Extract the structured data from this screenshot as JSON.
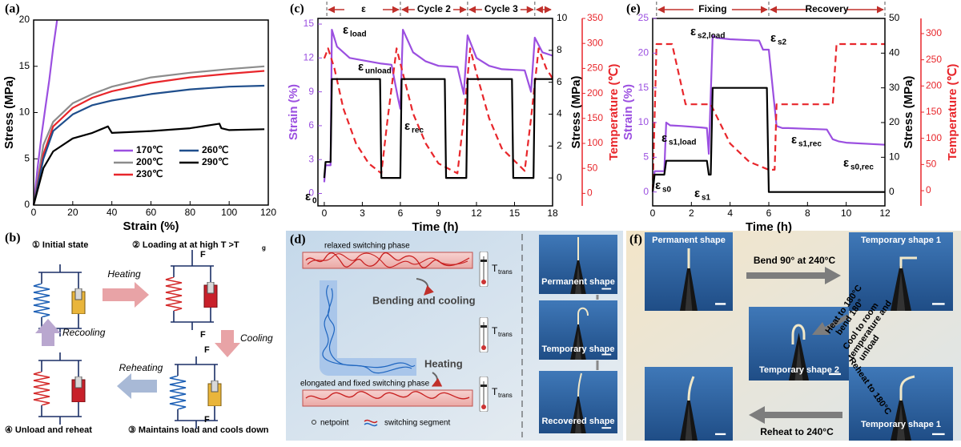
{
  "chart_data": [
    {
      "type": "line",
      "panel_label": "(a)",
      "xlabel": "Strain (%)",
      "ylabel": "Stress (MPa)",
      "xlim": [
        0,
        120
      ],
      "xticks": [
        0,
        20,
        40,
        60,
        80,
        100,
        120
      ],
      "ylim": [
        0,
        20
      ],
      "yticks": [
        0,
        5,
        10,
        15,
        20
      ],
      "legend": "lower center",
      "series": [
        {
          "name": "170℃",
          "color": "#9b4fe0",
          "x": [
            0,
            2,
            4,
            6,
            8,
            10,
            12
          ],
          "values": [
            0,
            4,
            7.5,
            10.5,
            13.5,
            17,
            20
          ]
        },
        {
          "name": "200℃",
          "color": "#8c8c8c",
          "x": [
            0,
            5,
            10,
            20,
            30,
            40,
            60,
            80,
            100,
            118
          ],
          "values": [
            0,
            6.5,
            9,
            11,
            12,
            12.8,
            13.8,
            14.3,
            14.7,
            15
          ]
        },
        {
          "name": "230℃",
          "color": "#e8262b",
          "x": [
            0,
            5,
            10,
            20,
            30,
            40,
            60,
            80,
            100,
            118
          ],
          "values": [
            0,
            5.5,
            8.5,
            10.5,
            11.6,
            12.3,
            13.2,
            13.8,
            14.2,
            14.5
          ]
        },
        {
          "name": "260℃",
          "color": "#1f4e8c",
          "x": [
            0,
            5,
            10,
            20,
            30,
            40,
            60,
            80,
            100,
            118
          ],
          "values": [
            0,
            5,
            8,
            9.8,
            10.8,
            11.3,
            12,
            12.5,
            12.8,
            12.9
          ]
        },
        {
          "name": "290℃",
          "color": "#000000",
          "x": [
            0,
            5,
            10,
            20,
            30,
            38,
            40,
            60,
            80,
            95,
            96,
            100,
            118
          ],
          "values": [
            0,
            4,
            5.8,
            7.2,
            7.8,
            8.5,
            7.8,
            8,
            8.3,
            8.8,
            8.3,
            8.1,
            8.2
          ]
        }
      ]
    },
    {
      "type": "line",
      "panel_label": "(c)",
      "xlabel": "Time (h)",
      "ylabel": "Strain (%)",
      "y2label": "Stress (MPa)",
      "y3label": "Temperature (℃)",
      "ycolor": "#9b4fe0",
      "y2color": "#000000",
      "y3color": "#e8262b",
      "xlim": [
        -0.5,
        18
      ],
      "xticks": [
        0,
        3,
        6,
        9,
        12,
        15,
        18
      ],
      "ylim": [
        -1.1,
        15.5
      ],
      "yticks": [
        0,
        3,
        6,
        9,
        12,
        15
      ],
      "y2lim": [
        -1.75,
        10
      ],
      "y2ticks": [
        0,
        2,
        4,
        6,
        8,
        10
      ],
      "y3lim": [
        -25,
        350
      ],
      "y3ticks": [
        0,
        50,
        100,
        150,
        200,
        250,
        300,
        350
      ],
      "header": [
        "ε",
        "Cycle 2",
        "Cycle 3"
      ],
      "annotations": [
        {
          "text": "ε",
          "sub": "load"
        },
        {
          "text": "ε",
          "sub": "unload"
        },
        {
          "text": "ε",
          "sub": "rec"
        },
        {
          "text": "ε",
          "sub": "0"
        }
      ],
      "series": [
        {
          "axis": "y",
          "color": "#9b4fe0",
          "x": [
            0,
            0.1,
            0.5,
            0.6,
            1,
            2,
            3,
            4.5,
            5.3,
            5.8,
            6.0,
            6.2,
            7,
            8,
            9,
            10.5,
            11,
            11.3,
            12,
            13,
            14,
            15.8,
            16.3,
            16.6,
            17.2,
            18
          ],
          "values": [
            1,
            2.5,
            2.5,
            14.5,
            13,
            12,
            11.8,
            11.5,
            11.4,
            8.5,
            7.5,
            14.5,
            12.5,
            11.7,
            11.3,
            11.2,
            8.8,
            14,
            12,
            11.3,
            11,
            10.9,
            9,
            13.8,
            12.5,
            12.2
          ]
        },
        {
          "axis": "y3",
          "color": "#e8262b",
          "dashed": true,
          "x": [
            0,
            0.3,
            0.8,
            1.5,
            2.5,
            3.5,
            4.5,
            5.0,
            5.7,
            6.3,
            7,
            8,
            9,
            10.5,
            11.0,
            11.5,
            12,
            13,
            14,
            15.8,
            16.3,
            16.9,
            17.5,
            18
          ],
          "values": [
            270,
            290,
            250,
            170,
            100,
            60,
            40,
            150,
            290,
            230,
            160,
            100,
            60,
            40,
            150,
            290,
            240,
            150,
            90,
            45,
            150,
            290,
            250,
            230
          ]
        },
        {
          "axis": "y2",
          "color": "#000000",
          "x": [
            0,
            0.1,
            0.5,
            0.6,
            4.4,
            4.5,
            6.0,
            6.1,
            9.5,
            9.6,
            11.2,
            11.3,
            14.8,
            14.9,
            16.5,
            16.6,
            18
          ],
          "values": [
            0,
            1,
            1,
            6.2,
            6.2,
            0,
            0,
            6.2,
            6.2,
            0,
            0,
            6.2,
            6.2,
            0,
            0,
            6.2,
            6.2
          ]
        }
      ]
    },
    {
      "type": "line",
      "panel_label": "(e)",
      "xlabel": "Time (h)",
      "ylabel": "Strain (%)",
      "y2label": "Stress (MPa)",
      "y3label": "Temperature (℃)",
      "ycolor": "#9b4fe0",
      "y2color": "#000000",
      "y3color": "#e8262b",
      "xlim": [
        0,
        12
      ],
      "xticks": [
        0,
        2,
        4,
        6,
        8,
        10,
        12
      ],
      "ylim": [
        -2,
        25
      ],
      "yticks": [
        0,
        5,
        10,
        15,
        20,
        25
      ],
      "y2lim": [
        -4,
        50
      ],
      "y2ticks": [
        0,
        10,
        20,
        30,
        40,
        50
      ],
      "y3lim": [
        -29,
        329
      ],
      "y3ticks": [
        0,
        50,
        100,
        150,
        200,
        250,
        300
      ],
      "header": [
        "Fixing",
        "Recovery"
      ],
      "annotations": [
        {
          "text": "ε",
          "sub": "s2,load"
        },
        {
          "text": "ε",
          "sub": "s2"
        },
        {
          "text": "ε",
          "sub": "s1,load"
        },
        {
          "text": "ε",
          "sub": "s1"
        },
        {
          "text": "ε",
          "sub": "s0"
        },
        {
          "text": "ε",
          "sub": "s1,rec"
        },
        {
          "text": "ε",
          "sub": "s0,rec"
        }
      ],
      "series": [
        {
          "axis": "y",
          "color": "#9b4fe0",
          "x": [
            0,
            0.1,
            0.6,
            0.7,
            0.9,
            1.5,
            2.5,
            2.8,
            2.9,
            3.1,
            3.3,
            4,
            5.5,
            5.7,
            6.0,
            6.4,
            6.7,
            7,
            8,
            9,
            9.3,
            9.6,
            10,
            12
          ],
          "values": [
            0,
            3,
            3,
            10,
            9.6,
            9.5,
            9.3,
            9.2,
            5.5,
            22.5,
            22.2,
            22,
            21.8,
            20.5,
            20.5,
            9.5,
            9.2,
            9.2,
            9.1,
            9,
            7.6,
            7.3,
            7.1,
            6.8
          ]
        },
        {
          "axis": "y3",
          "color": "#e8262b",
          "dashed": true,
          "x": [
            0,
            0.2,
            1,
            1.7,
            3,
            4,
            5,
            6,
            6.3,
            6.4,
            9.3,
            9.5,
            12
          ],
          "values": [
            0,
            280,
            280,
            165,
            165,
            90,
            55,
            40,
            40,
            165,
            165,
            280,
            280
          ]
        },
        {
          "axis": "y2",
          "color": "#000000",
          "x": [
            0,
            0.1,
            0.6,
            0.7,
            2.8,
            2.9,
            3.0,
            3.1,
            5.9,
            6.0,
            12
          ],
          "values": [
            0,
            5,
            5,
            9,
            9,
            5,
            5,
            30,
            30,
            0,
            0
          ]
        }
      ]
    }
  ],
  "diagram_b": {
    "label": "(b)",
    "states": [
      {
        "title": "① Initial state"
      },
      {
        "title": "② Loading at at high T >T",
        "title_sub": "g"
      },
      {
        "title": "③ Maintains load and cools down"
      },
      {
        "title": "④ Unload and reheat"
      }
    ],
    "force_label": "F",
    "arrows": [
      "Heating",
      "Cooling",
      "Reheating",
      "Recooling"
    ]
  },
  "diagram_d": {
    "label": "(d)",
    "phases": [
      "relaxed switching phase",
      "elongated and fixed switching phase"
    ],
    "steps": [
      "Bending and cooling",
      "Heating"
    ],
    "thermometer": {
      "text": "T",
      "sub": "trans"
    },
    "legend": [
      "netpoint",
      "switching segment"
    ],
    "photos": [
      "Permanent shape",
      "Temporary shape",
      "Recovered shape"
    ]
  },
  "photos_f": {
    "label": "(f)",
    "photos": [
      "Permanent shape",
      "Temporary shape 1",
      "Temporary shape 2",
      "Temporary shape 1"
    ],
    "steps": [
      {
        "lines": [
          "Bend 90° at 240°C"
        ]
      },
      {
        "lines": [
          "Heat to 180°C",
          "bend 180°"
        ]
      },
      {
        "lines": [
          "Cool to room",
          "temperature and",
          "unload"
        ]
      },
      {
        "lines": [
          "Reheat to 180°C"
        ]
      },
      {
        "lines": [
          "Reheat to 240°C"
        ]
      }
    ]
  }
}
